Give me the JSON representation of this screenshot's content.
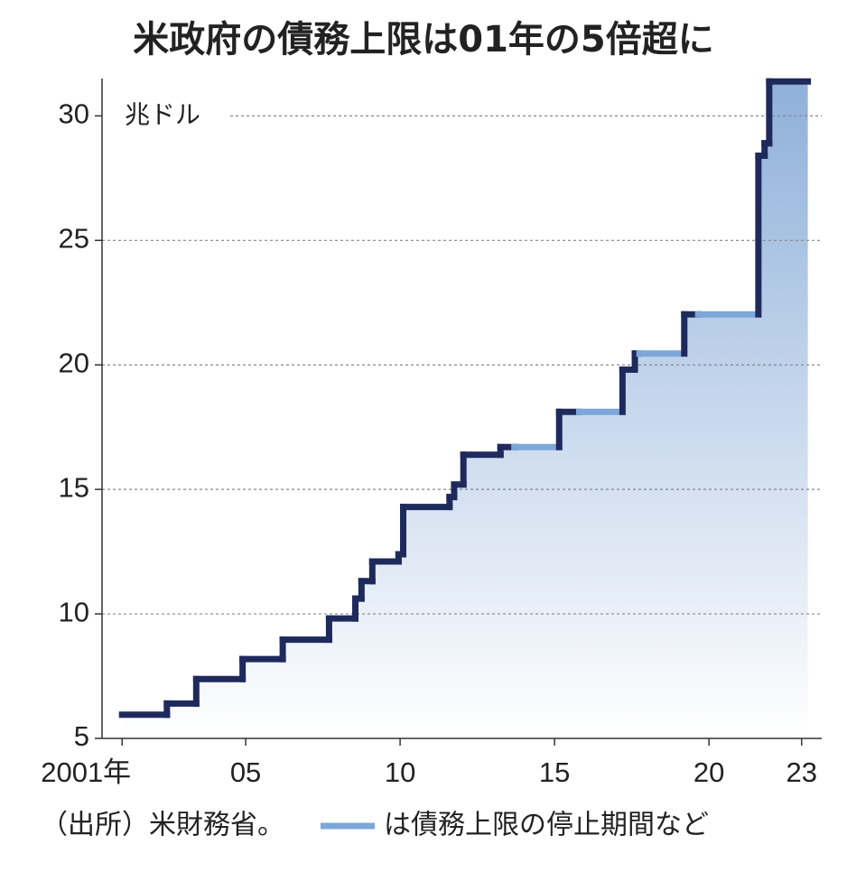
{
  "chart_data": {
    "type": "step",
    "title": "米政府の債務上限は01年の5倍超に",
    "y_unit": "兆ドル",
    "source": "（出所）米財務省。",
    "x": [
      2001.0,
      2002.45,
      2003.4,
      2004.9,
      2006.2,
      2007.7,
      2008.55,
      2008.75,
      2009.1,
      2009.95,
      2010.1,
      2011.6,
      2011.75,
      2012.05,
      2013.25,
      2013.7,
      2015.15,
      2015.8,
      2017.2,
      2017.6,
      2017.75,
      2019.2,
      2019.65,
      2021.6,
      2021.8,
      2021.95,
      2023.2
    ],
    "series": [
      {
        "color": "#1f2a5c",
        "values": [
          5.95,
          6.4,
          7.384,
          8.184,
          8.965,
          9.815,
          10.615,
          11.315,
          12.104,
          12.394,
          14.294,
          14.694,
          15.194,
          16.394,
          16.699,
          null,
          18.113,
          null,
          19.809,
          20.456,
          null,
          22.03,
          null,
          28.401,
          28.9,
          31.381,
          31.381
        ]
      },
      {
        "name": "は債務上限の停止期間など",
        "color": "#7ba7d9",
        "values": [
          null,
          null,
          null,
          null,
          null,
          null,
          null,
          null,
          null,
          null,
          null,
          null,
          null,
          null,
          null,
          16.699,
          null,
          18.113,
          null,
          null,
          20.456,
          null,
          22.03,
          null,
          null,
          null,
          null
        ]
      }
    ],
    "xlim": [
      2000.35,
      2023.65
    ],
    "ylim": [
      5,
      31.5
    ],
    "xticks": [
      {
        "value": 2001,
        "label": "2001年"
      },
      {
        "value": 2005,
        "label": "05"
      },
      {
        "value": 2010,
        "label": "10"
      },
      {
        "value": 2015,
        "label": "15"
      },
      {
        "value": 2020,
        "label": "20"
      },
      {
        "value": 2023,
        "label": "23"
      }
    ],
    "yticks": [
      5,
      10,
      15,
      20,
      25,
      30
    ],
    "grid": true
  }
}
